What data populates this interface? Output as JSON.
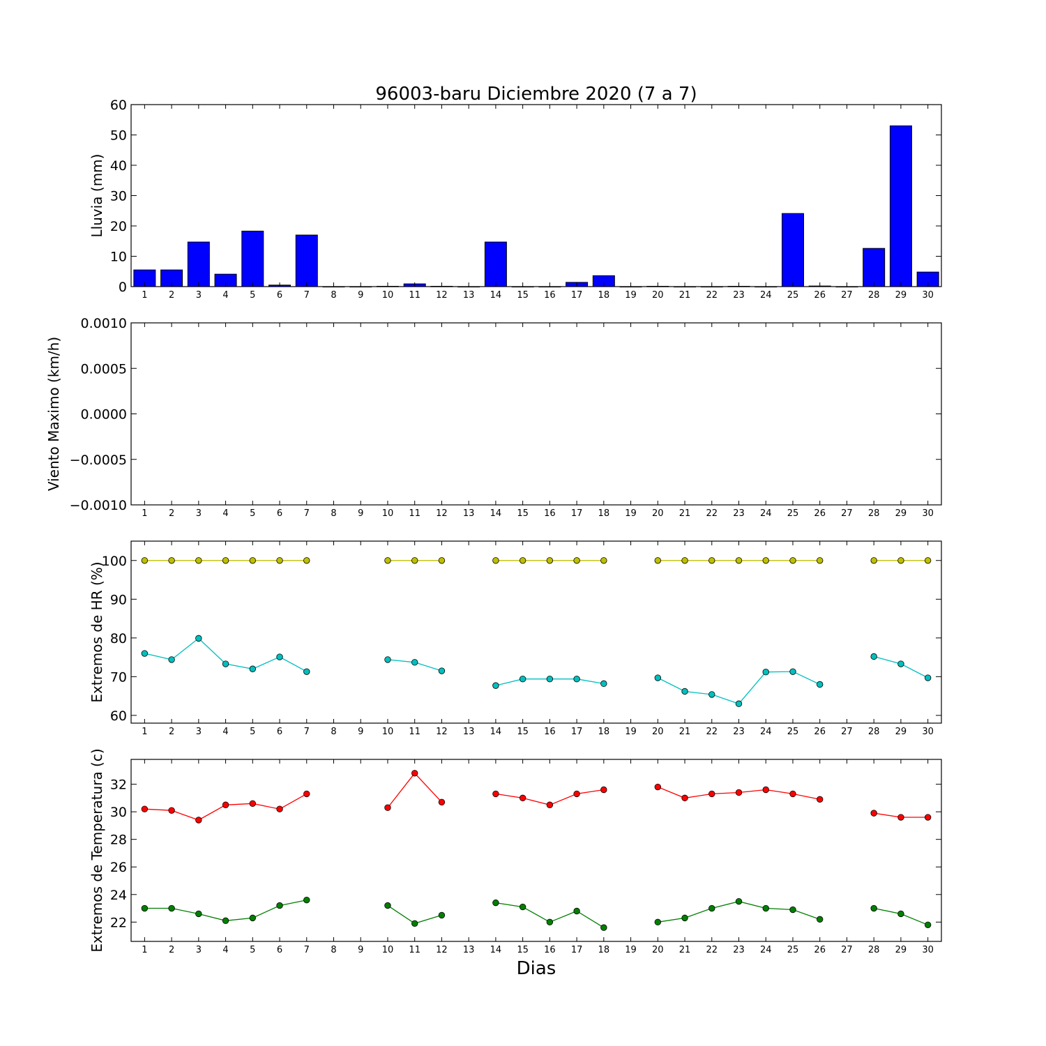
{
  "title": "96003-baru Diciembre 2020  (7 a 7)",
  "xlabel": "Dias",
  "chart_data": [
    {
      "type": "bar",
      "ylabel": "Lluvia (mm)",
      "ylim": [
        0,
        60
      ],
      "yticks": [
        "0",
        "10",
        "20",
        "30",
        "40",
        "50",
        "60"
      ],
      "categories": [
        "1",
        "2",
        "3",
        "4",
        "5",
        "6",
        "7",
        "8",
        "9",
        "10",
        "11",
        "12",
        "13",
        "14",
        "15",
        "16",
        "17",
        "18",
        "19",
        "20",
        "21",
        "22",
        "23",
        "24",
        "25",
        "26",
        "27",
        "28",
        "29",
        "30"
      ],
      "values": [
        5.5,
        5.5,
        14.7,
        4.1,
        18.3,
        0.5,
        17.0,
        0,
        0,
        0.1,
        0.9,
        0.1,
        0,
        14.7,
        0,
        0,
        1.4,
        3.6,
        0,
        0.1,
        0,
        0,
        0.1,
        0,
        24.1,
        0.2,
        0,
        12.6,
        53.0,
        4.8
      ],
      "color": "#0000ff"
    },
    {
      "type": "line",
      "ylabel": "Viento Maximo (km/h)",
      "ylim": [
        -0.001,
        0.001
      ],
      "yticks": [
        "−0.0010",
        "−0.0005",
        "0.0000",
        "0.0005",
        "0.0010"
      ],
      "categories": [
        "1",
        "2",
        "3",
        "4",
        "5",
        "6",
        "7",
        "8",
        "9",
        "10",
        "11",
        "12",
        "13",
        "14",
        "15",
        "16",
        "17",
        "18",
        "19",
        "20",
        "21",
        "22",
        "23",
        "24",
        "25",
        "26",
        "27",
        "28",
        "29",
        "30"
      ],
      "series": []
    },
    {
      "type": "line",
      "ylabel": "Extremos de HR (%)",
      "ylim": [
        58,
        105
      ],
      "yticks": [
        "60",
        "70",
        "80",
        "90",
        "100"
      ],
      "categories": [
        "1",
        "2",
        "3",
        "4",
        "5",
        "6",
        "7",
        "8",
        "9",
        "10",
        "11",
        "12",
        "13",
        "14",
        "15",
        "16",
        "17",
        "18",
        "19",
        "20",
        "21",
        "22",
        "23",
        "24",
        "25",
        "26",
        "27",
        "28",
        "29",
        "30"
      ],
      "series": [
        {
          "color": "#bfbf00",
          "values": [
            100,
            100,
            100,
            100,
            100,
            100,
            100,
            null,
            null,
            100,
            100,
            100,
            null,
            100,
            100,
            100,
            100,
            100,
            null,
            100,
            100,
            100,
            100,
            100,
            100,
            100,
            null,
            100,
            100,
            100
          ]
        },
        {
          "color": "#00bfbf",
          "values": [
            76.0,
            74.4,
            79.9,
            73.3,
            72.0,
            75.1,
            71.3,
            null,
            null,
            74.4,
            73.7,
            71.5,
            null,
            67.7,
            69.4,
            69.4,
            69.4,
            68.2,
            null,
            69.7,
            66.2,
            65.4,
            63.0,
            71.2,
            71.3,
            68.0,
            null,
            75.2,
            73.3,
            69.7
          ]
        }
      ]
    },
    {
      "type": "line",
      "ylabel": "Extremos de Temperatura (c)",
      "ylim": [
        20.6,
        33.8
      ],
      "yticks": [
        "22",
        "24",
        "26",
        "28",
        "30",
        "32"
      ],
      "categories": [
        "1",
        "2",
        "3",
        "4",
        "5",
        "6",
        "7",
        "8",
        "9",
        "10",
        "11",
        "12",
        "13",
        "14",
        "15",
        "16",
        "17",
        "18",
        "19",
        "20",
        "21",
        "22",
        "23",
        "24",
        "25",
        "26",
        "27",
        "28",
        "29",
        "30"
      ],
      "series": [
        {
          "color": "#ff0000",
          "values": [
            30.2,
            30.1,
            29.4,
            30.5,
            30.6,
            30.2,
            31.3,
            null,
            null,
            30.3,
            32.8,
            30.7,
            null,
            31.3,
            31.0,
            30.5,
            31.3,
            31.6,
            null,
            31.8,
            31.0,
            31.3,
            31.4,
            31.6,
            31.3,
            30.9,
            null,
            29.9,
            29.6,
            29.6
          ]
        },
        {
          "color": "#007f00",
          "values": [
            23.0,
            23.0,
            22.6,
            22.1,
            22.3,
            23.2,
            23.6,
            null,
            null,
            23.2,
            21.9,
            22.5,
            null,
            23.4,
            23.1,
            22.0,
            22.8,
            21.6,
            null,
            22.0,
            22.3,
            23.0,
            23.5,
            23.0,
            22.9,
            22.2,
            null,
            23.0,
            22.6,
            21.8
          ]
        }
      ]
    }
  ]
}
